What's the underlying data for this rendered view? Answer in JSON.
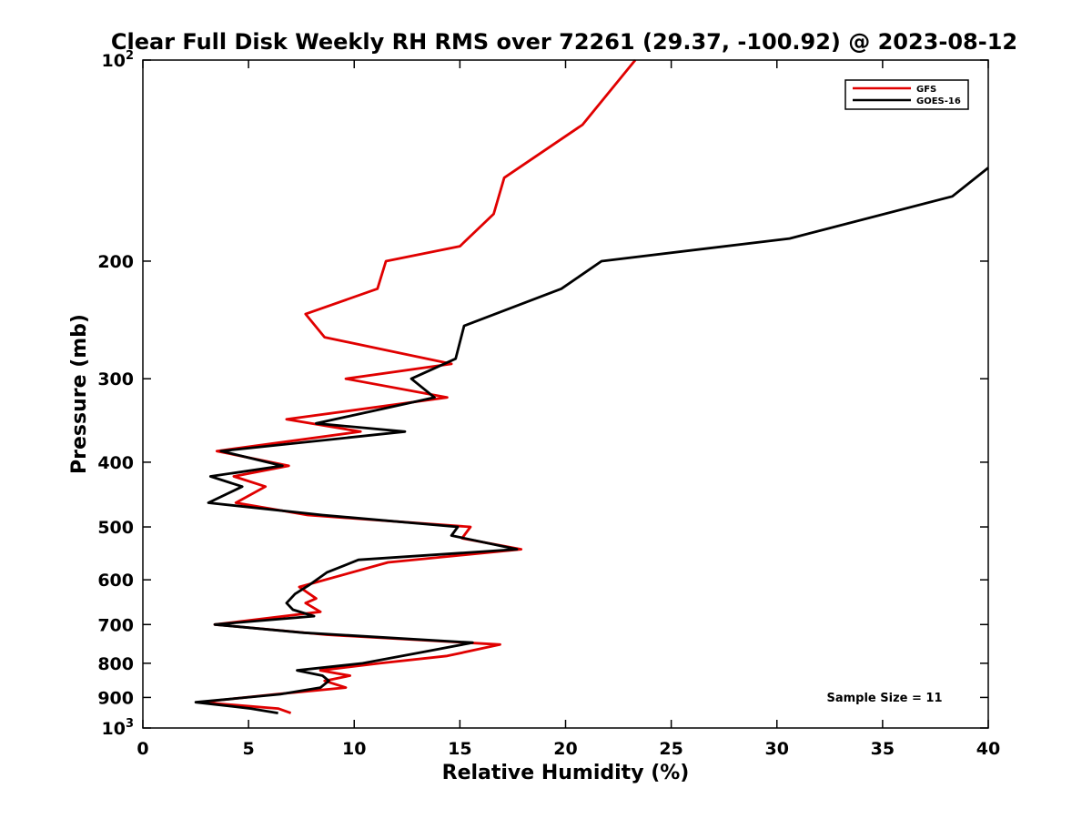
{
  "chart_data": {
    "type": "line",
    "title": "Clear Full Disk Weekly RH RMS over 72261 (29.37, -100.92) @ 2023-08-12",
    "xlabel": "Relative Humidity (%)",
    "ylabel": "Pressure (mb)",
    "xlim": [
      0,
      40
    ],
    "ylim": [
      1000,
      100
    ],
    "yscale": "log",
    "x_ticks": [
      0,
      5,
      10,
      15,
      20,
      25,
      30,
      35,
      40
    ],
    "y_ticks": [
      {
        "value": 100,
        "label": "10",
        "exp": "2"
      },
      {
        "value": 200,
        "label": "200"
      },
      {
        "value": 300,
        "label": "300"
      },
      {
        "value": 400,
        "label": "400"
      },
      {
        "value": 500,
        "label": "500"
      },
      {
        "value": 600,
        "label": "600"
      },
      {
        "value": 700,
        "label": "700"
      },
      {
        "value": 800,
        "label": "800"
      },
      {
        "value": 900,
        "label": "900"
      },
      {
        "value": 1000,
        "label": "10",
        "exp": "3"
      }
    ],
    "grid": false,
    "legend_position": "top-right",
    "series": [
      {
        "name": "GFS",
        "color": "#e00000",
        "points": [
          [
            23.3,
            100
          ],
          [
            20.8,
            125
          ],
          [
            17.1,
            150
          ],
          [
            16.6,
            170
          ],
          [
            15.0,
            190
          ],
          [
            11.5,
            200
          ],
          [
            11.1,
            220
          ],
          [
            7.7,
            240
          ],
          [
            8.6,
            260
          ],
          [
            14.6,
            285
          ],
          [
            9.6,
            300
          ],
          [
            14.4,
            320
          ],
          [
            6.8,
            345
          ],
          [
            10.3,
            360
          ],
          [
            3.5,
            385
          ],
          [
            6.9,
            405
          ],
          [
            4.3,
            420
          ],
          [
            5.8,
            435
          ],
          [
            4.4,
            460
          ],
          [
            7.8,
            480
          ],
          [
            15.5,
            500
          ],
          [
            15.1,
            520
          ],
          [
            17.9,
            540
          ],
          [
            11.6,
            565
          ],
          [
            7.4,
            615
          ],
          [
            8.2,
            640
          ],
          [
            7.7,
            650
          ],
          [
            8.4,
            670
          ],
          [
            3.4,
            700
          ],
          [
            8.7,
            725
          ],
          [
            16.9,
            750
          ],
          [
            14.4,
            780
          ],
          [
            11.2,
            800
          ],
          [
            8.4,
            820
          ],
          [
            9.8,
            835
          ],
          [
            8.6,
            850
          ],
          [
            9.6,
            870
          ],
          [
            6.3,
            890
          ],
          [
            2.7,
            915
          ],
          [
            6.4,
            935
          ],
          [
            7.0,
            950
          ]
        ]
      },
      {
        "name": "GOES-16",
        "color": "#000000",
        "points": [
          [
            40.0,
            145
          ],
          [
            38.3,
            160
          ],
          [
            30.6,
            185
          ],
          [
            21.7,
            200
          ],
          [
            19.8,
            220
          ],
          [
            15.2,
            250
          ],
          [
            14.8,
            280
          ],
          [
            12.7,
            300
          ],
          [
            13.8,
            320
          ],
          [
            8.2,
            350
          ],
          [
            12.4,
            360
          ],
          [
            3.7,
            385
          ],
          [
            6.6,
            405
          ],
          [
            3.2,
            420
          ],
          [
            4.7,
            435
          ],
          [
            3.1,
            460
          ],
          [
            8.5,
            480
          ],
          [
            14.9,
            500
          ],
          [
            14.6,
            515
          ],
          [
            17.7,
            540
          ],
          [
            10.2,
            560
          ],
          [
            8.7,
            585
          ],
          [
            7.9,
            610
          ],
          [
            7.2,
            630
          ],
          [
            6.8,
            650
          ],
          [
            7.1,
            665
          ],
          [
            8.1,
            680
          ],
          [
            3.4,
            700
          ],
          [
            7.6,
            720
          ],
          [
            15.6,
            745
          ],
          [
            13.2,
            770
          ],
          [
            10.4,
            800
          ],
          [
            7.3,
            820
          ],
          [
            8.5,
            835
          ],
          [
            8.8,
            850
          ],
          [
            8.4,
            870
          ],
          [
            6.5,
            890
          ],
          [
            2.5,
            915
          ],
          [
            5.1,
            935
          ],
          [
            6.4,
            950
          ]
        ]
      }
    ],
    "annotation": "Sample Size = 11"
  }
}
